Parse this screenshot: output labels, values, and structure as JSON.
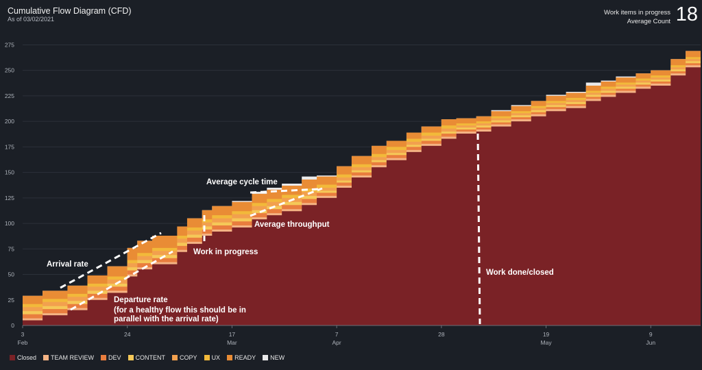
{
  "header": {
    "title": "Cumulative Flow Diagram (CFD)",
    "subtitle": "As of 03/02/2021",
    "kpi_label": "Work items in progress",
    "kpi_sublabel": "Average Count",
    "kpi_value": "18"
  },
  "chart_data": {
    "type": "area",
    "stacked": true,
    "title": "Cumulative Flow Diagram (CFD)",
    "ylim": [
      0,
      280
    ],
    "y_ticks": [
      0,
      25,
      50,
      75,
      100,
      125,
      150,
      175,
      200,
      225,
      250,
      275
    ],
    "x_range_days": [
      0,
      136
    ],
    "x_ticks": [
      {
        "day": 0,
        "label": "3",
        "sub": "Feb"
      },
      {
        "day": 21,
        "label": "24",
        "sub": ""
      },
      {
        "day": 42,
        "label": "17",
        "sub": "Mar"
      },
      {
        "day": 63,
        "label": "7",
        "sub": "Apr"
      },
      {
        "day": 84,
        "label": "28",
        "sub": ""
      },
      {
        "day": 105,
        "label": "19",
        "sub": "May"
      },
      {
        "day": 126,
        "label": "9",
        "sub": "Jun"
      }
    ],
    "days": [
      0,
      4,
      6,
      9,
      13,
      17,
      21,
      23,
      26,
      31,
      33,
      36,
      38,
      42,
      46,
      49,
      52,
      56,
      59,
      63,
      66,
      70,
      73,
      77,
      80,
      84,
      87,
      91,
      94,
      98,
      102,
      105,
      109,
      113,
      116,
      119,
      123,
      126,
      130,
      133,
      136
    ],
    "closed": [
      5,
      10,
      10,
      15,
      25,
      32,
      48,
      55,
      60,
      72,
      80,
      88,
      92,
      96,
      104,
      108,
      112,
      118,
      125,
      135,
      145,
      155,
      162,
      170,
      176,
      183,
      188,
      190,
      195,
      200,
      205,
      210,
      213,
      220,
      224,
      228,
      232,
      235,
      245,
      253,
      258
    ],
    "layers": [
      {
        "name": "TEAM REVIEW",
        "color": "#f4b384",
        "values": [
          2,
          2,
          2,
          2,
          2,
          2,
          2,
          2,
          2,
          2,
          2,
          2,
          2,
          2,
          2,
          2,
          2,
          2,
          2,
          2,
          2,
          2,
          2,
          2,
          2,
          2,
          2,
          2,
          2,
          2,
          2,
          2,
          2,
          2,
          2,
          2,
          2,
          2,
          2,
          2,
          2
        ]
      },
      {
        "name": "DEV",
        "color": "#e97d3e",
        "values": [
          4,
          4,
          4,
          4,
          4,
          4,
          4,
          4,
          4,
          4,
          4,
          4,
          4,
          4,
          4,
          4,
          4,
          4,
          3,
          3,
          3,
          3,
          3,
          3,
          3,
          3,
          2,
          2,
          2,
          2,
          2,
          2,
          2,
          2,
          2,
          2,
          2,
          2,
          2,
          2,
          2
        ]
      },
      {
        "name": "CONTENT",
        "color": "#f5c858",
        "values": [
          3,
          3,
          3,
          3,
          3,
          3,
          3,
          3,
          3,
          3,
          3,
          3,
          3,
          3,
          3,
          3,
          3,
          3,
          2,
          2,
          2,
          2,
          2,
          2,
          2,
          2,
          2,
          2,
          2,
          2,
          2,
          2,
          2,
          2,
          2,
          2,
          2,
          2,
          2,
          2,
          2
        ]
      },
      {
        "name": "COPY",
        "color": "#f2a04e",
        "values": [
          4,
          4,
          4,
          4,
          4,
          4,
          4,
          4,
          4,
          4,
          4,
          4,
          4,
          4,
          4,
          4,
          4,
          4,
          3,
          3,
          3,
          3,
          3,
          3,
          3,
          3,
          2,
          2,
          2,
          2,
          2,
          2,
          2,
          2,
          2,
          2,
          2,
          2,
          2,
          2,
          2
        ]
      },
      {
        "name": "UX",
        "color": "#f2b93a",
        "values": [
          3,
          3,
          3,
          3,
          3,
          3,
          3,
          3,
          3,
          3,
          3,
          3,
          3,
          3,
          3,
          3,
          3,
          3,
          3,
          3,
          3,
          3,
          3,
          3,
          3,
          3,
          2,
          2,
          2,
          2,
          2,
          2,
          2,
          2,
          2,
          2,
          2,
          2,
          2,
          2,
          2
        ]
      },
      {
        "name": "READY",
        "color": "#e98c35",
        "values": [
          8,
          8,
          8,
          8,
          8,
          10,
          12,
          12,
          12,
          9,
          9,
          9,
          9,
          9,
          9,
          9,
          9,
          9,
          8,
          8,
          8,
          8,
          6,
          6,
          6,
          6,
          5,
          5,
          5,
          5,
          5,
          5,
          5,
          5,
          5,
          5,
          5,
          5,
          6,
          6,
          6
        ]
      },
      {
        "name": "NEW",
        "color": "#e9e9ea",
        "values": [
          0,
          0,
          0,
          0,
          0,
          0,
          0,
          0,
          0,
          0,
          0,
          0,
          0,
          1,
          2,
          2,
          2,
          3,
          1,
          0,
          0,
          0,
          0,
          0,
          0,
          0,
          0,
          0,
          1,
          1,
          0,
          1,
          1,
          3,
          1,
          1,
          0,
          0,
          0,
          0,
          1
        ]
      }
    ],
    "closed_series": {
      "name": "Closed",
      "color": "#7a2226"
    },
    "annotations": [
      {
        "text": "Arrival rate"
      },
      {
        "text": "Departure rate"
      },
      {
        "text": "(for a healthy flow this should be in"
      },
      {
        "text": "parallel with the arrival rate)"
      },
      {
        "text": "Work in progress"
      },
      {
        "text": "Average cycle time"
      },
      {
        "text": "Average throughput"
      },
      {
        "text": "Work done/closed"
      }
    ]
  },
  "legend": [
    {
      "label": "Closed",
      "color": "#7a2226"
    },
    {
      "label": "TEAM REVIEW",
      "color": "#f4b384"
    },
    {
      "label": "DEV",
      "color": "#e97d3e"
    },
    {
      "label": "CONTENT",
      "color": "#f5c858"
    },
    {
      "label": "COPY",
      "color": "#f2a04e"
    },
    {
      "label": "UX",
      "color": "#f2b93a"
    },
    {
      "label": "READY",
      "color": "#e98c35"
    },
    {
      "label": "NEW",
      "color": "#e9e9ea"
    }
  ]
}
